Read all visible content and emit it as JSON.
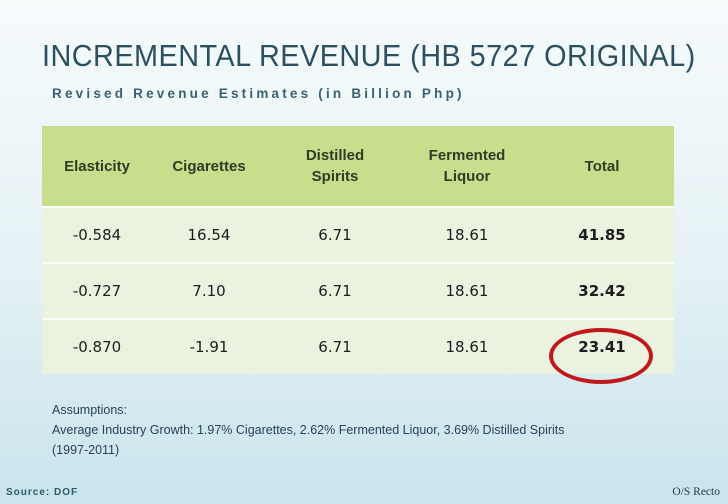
{
  "title": "INCREMENTAL REVENUE (HB 5727 ORIGINAL)",
  "subtitle": "Revised Revenue Estimates (in Billion Php)",
  "table": {
    "headers": [
      "Elasticity",
      "Cigarettes",
      "Distilled Spirits",
      "Fermented Liquor",
      "Total"
    ],
    "rows": [
      [
        "-0.584",
        "16.54",
        "6.71",
        "18.61",
        "41.85"
      ],
      [
        "-0.727",
        "7.10",
        "6.71",
        "18.61",
        "32.42"
      ],
      [
        "-0.870",
        "-1.91",
        "6.71",
        "18.61",
        "23.41"
      ]
    ]
  },
  "assumptions": {
    "heading": "Assumptions:",
    "line1": "Average Industry Growth: 1.97% Cigarettes, 2.62% Fermented Liquor, 3.69% Distilled Spirits",
    "line2": "(1997-2011)"
  },
  "footer": {
    "source": "Source: DOF",
    "credit": "O/S Recto"
  },
  "colors": {
    "header_bg": "#c7df8c",
    "row_bg": "#ebf2e0",
    "highlight_circle": "#c0191d"
  }
}
